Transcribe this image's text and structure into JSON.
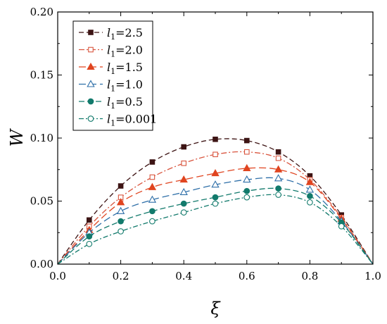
{
  "chart_data": {
    "type": "line",
    "title": "",
    "xlabel": "ξ",
    "ylabel": "W",
    "xlim": [
      0.0,
      1.0
    ],
    "ylim": [
      0.0,
      0.2
    ],
    "xticks": [
      "0.0",
      "0.2",
      "0.4",
      "0.6",
      "0.8",
      "1.0"
    ],
    "yticks": [
      "0.00",
      "0.05",
      "0.10",
      "0.15",
      "0.20"
    ],
    "grid": false,
    "legend_position": "top-left",
    "series": [
      {
        "name": "2.5",
        "color": "#3d1414",
        "marker": "square",
        "filled": true,
        "dash": "7,4",
        "x": [
          0.0,
          0.1,
          0.2,
          0.3,
          0.4,
          0.5,
          0.6,
          0.7,
          0.8,
          0.9,
          1.0
        ],
        "y": [
          0.0,
          0.035,
          0.062,
          0.081,
          0.093,
          0.099,
          0.098,
          0.089,
          0.07,
          0.039,
          0.0
        ]
      },
      {
        "name": "2.0",
        "color": "#d9553e",
        "marker": "square",
        "filled": false,
        "dash": "8,3,2,3",
        "x": [
          0.0,
          0.1,
          0.2,
          0.3,
          0.4,
          0.5,
          0.6,
          0.7,
          0.8,
          0.9,
          1.0
        ],
        "y": [
          0.0,
          0.03,
          0.053,
          0.069,
          0.08,
          0.087,
          0.089,
          0.084,
          0.067,
          0.037,
          0.0
        ]
      },
      {
        "name": "1.5",
        "color": "#e0441f",
        "marker": "triangle",
        "filled": true,
        "dash": "10,5",
        "x": [
          0.0,
          0.1,
          0.2,
          0.3,
          0.4,
          0.5,
          0.6,
          0.7,
          0.8,
          0.9,
          1.0
        ],
        "y": [
          0.0,
          0.027,
          0.049,
          0.061,
          0.067,
          0.072,
          0.076,
          0.075,
          0.065,
          0.036,
          0.0
        ]
      },
      {
        "name": "1.0",
        "color": "#2e6fa8",
        "marker": "triangle",
        "filled": false,
        "dash": "10,5",
        "x": [
          0.0,
          0.1,
          0.2,
          0.3,
          0.4,
          0.5,
          0.6,
          0.7,
          0.8,
          0.9,
          1.0
        ],
        "y": [
          0.0,
          0.025,
          0.042,
          0.051,
          0.057,
          0.063,
          0.067,
          0.068,
          0.059,
          0.034,
          0.0
        ]
      },
      {
        "name": "0.5",
        "color": "#127a6c",
        "marker": "circle",
        "filled": true,
        "dash": "8,4",
        "x": [
          0.0,
          0.1,
          0.2,
          0.3,
          0.4,
          0.5,
          0.6,
          0.7,
          0.8,
          0.9,
          1.0
        ],
        "y": [
          0.0,
          0.022,
          0.034,
          0.042,
          0.048,
          0.053,
          0.058,
          0.06,
          0.054,
          0.033,
          0.0
        ]
      },
      {
        "name": "0.001",
        "color": "#127a6c",
        "marker": "circle",
        "filled": false,
        "dash": "7,3,2,3",
        "x": [
          0.0,
          0.1,
          0.2,
          0.3,
          0.4,
          0.5,
          0.6,
          0.7,
          0.8,
          0.9,
          1.0
        ],
        "y": [
          0.0,
          0.016,
          0.026,
          0.034,
          0.041,
          0.048,
          0.053,
          0.055,
          0.049,
          0.03,
          0.0
        ]
      }
    ],
    "legend": {
      "symbol": "l",
      "subscript": "1",
      "equals": "="
    }
  }
}
